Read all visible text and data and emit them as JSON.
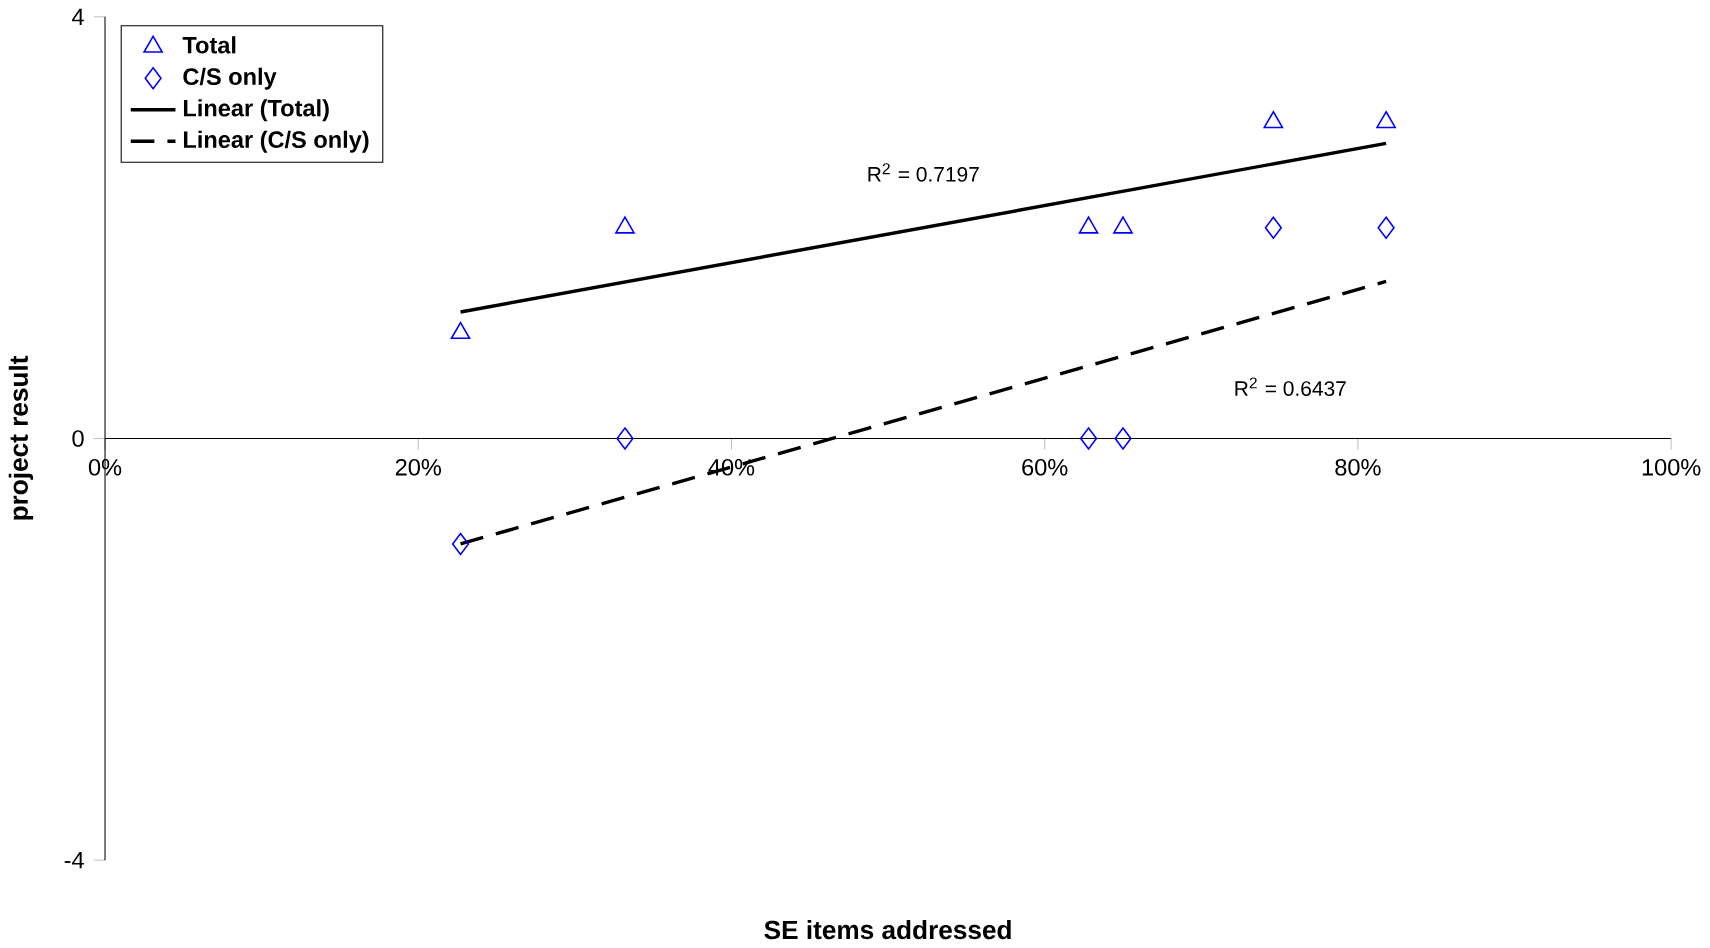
{
  "chart_data": {
    "type": "scatter",
    "xlabel": "SE items addressed",
    "ylabel": "project result",
    "xlim": [
      0,
      100
    ],
    "ylim": [
      -4,
      4
    ],
    "xticks": [
      {
        "value": 0,
        "label": "0%"
      },
      {
        "value": 20,
        "label": "20%"
      },
      {
        "value": 40,
        "label": "40%"
      },
      {
        "value": 60,
        "label": "60%"
      },
      {
        "value": 80,
        "label": "80%"
      },
      {
        "value": 100,
        "label": "100%"
      }
    ],
    "yticks": [
      -4,
      0,
      4
    ],
    "grid": false,
    "legend": "top left",
    "series": [
      {
        "name": "Total",
        "color": "#0000ff",
        "marker": "triangle",
        "x": [
          22.7,
          33.2,
          62.8,
          65.0,
          74.6,
          81.8
        ],
        "values": [
          1,
          2,
          2,
          2,
          3,
          3
        ]
      },
      {
        "name": "C/S only",
        "color": "#0000ff",
        "marker": "diamond",
        "x": [
          22.7,
          33.2,
          62.8,
          65.0,
          74.6,
          81.8
        ],
        "values": [
          -1,
          0,
          0,
          0,
          2,
          2
        ]
      },
      {
        "name": "Linear (Total)",
        "type": "line",
        "color": "#000000",
        "line_style": "solid",
        "marker": "none",
        "x": [
          22.7,
          81.8
        ],
        "values": [
          1.2,
          2.8
        ]
      },
      {
        "name": "Linear (C/S only)",
        "type": "line",
        "color": "#000000",
        "line_style": "dashed",
        "marker": "none",
        "x": [
          22.7,
          81.8
        ],
        "values": [
          -1.0,
          1.49
        ]
      }
    ],
    "annotations": [
      "R$^{2}$ = 0.7197",
      "R$^{2}$ = 0.6437"
    ]
  }
}
